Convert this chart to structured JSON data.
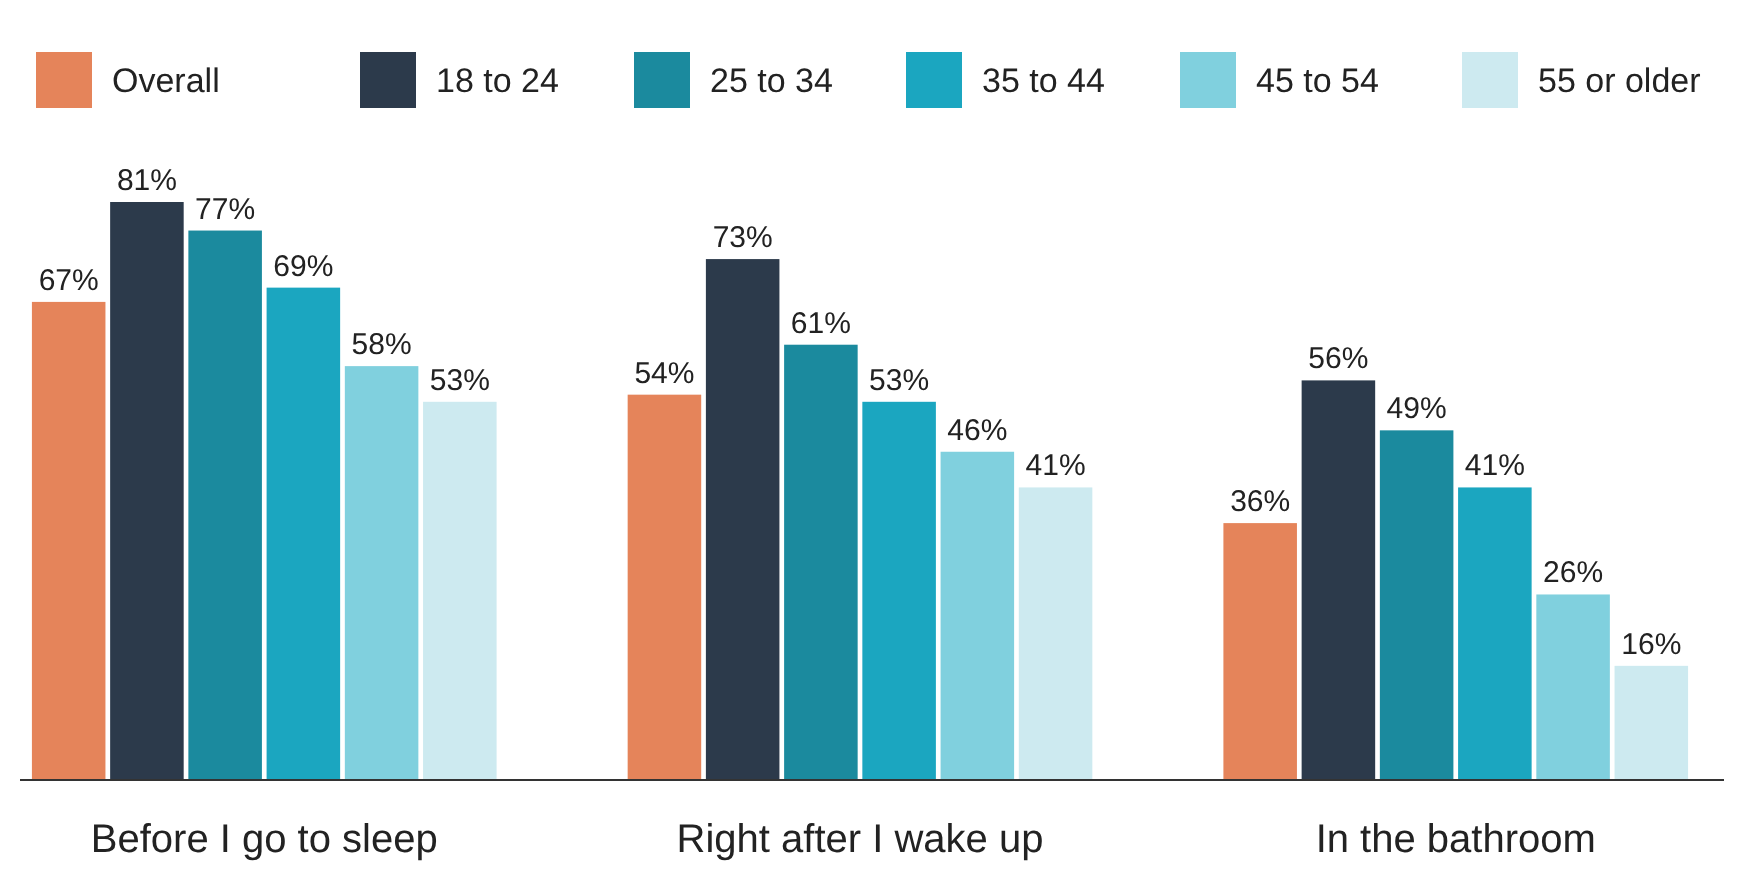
{
  "chart_data": {
    "type": "bar",
    "categories": [
      "Before I go to sleep",
      "Right after I wake up",
      "In the bathroom"
    ],
    "series": [
      {
        "name": "Overall",
        "color": "#e5845a",
        "values": [
          67,
          54,
          36
        ],
        "value_labels": [
          "67%",
          "54%",
          "36%"
        ]
      },
      {
        "name": "18 to 24",
        "color": "#2c3a4b",
        "values": [
          81,
          73,
          56
        ],
        "value_labels": [
          "81%",
          "73%",
          "56%"
        ]
      },
      {
        "name": "25 to 34",
        "color": "#1b8a9e",
        "values": [
          77,
          61,
          49
        ],
        "value_labels": [
          "77%",
          "61%",
          "49%"
        ]
      },
      {
        "name": "35 to 44",
        "color": "#1ba6c0",
        "values": [
          69,
          53,
          41
        ],
        "value_labels": [
          "69%",
          "53%",
          "41%"
        ]
      },
      {
        "name": "45 to 54",
        "color": "#80d0de",
        "values": [
          58,
          46,
          26
        ],
        "value_labels": [
          "58%",
          "46%",
          "26%"
        ]
      },
      {
        "name": "55 or older",
        "color": "#cdeaf0",
        "values": [
          53,
          41,
          16
        ],
        "value_labels": [
          "53%",
          "41%",
          "16%"
        ]
      }
    ],
    "legend": "top"
  }
}
